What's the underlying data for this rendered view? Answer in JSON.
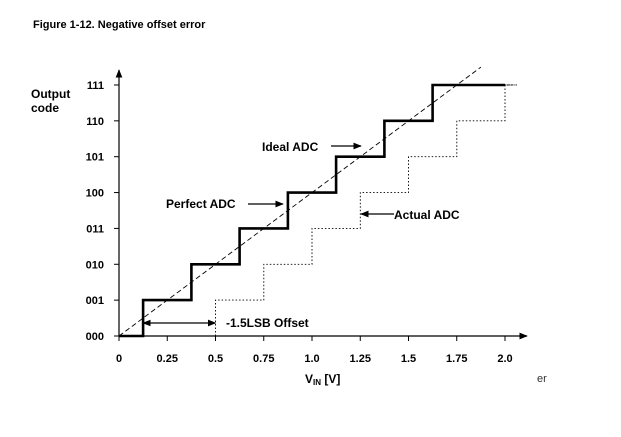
{
  "figure": {
    "title": "Figure 1-12. Negative offset error",
    "footer_text": "er"
  },
  "chart_data": {
    "type": "line",
    "title": "Figure 1-12. Negative offset error",
    "ylabel_line1": "Output",
    "ylabel_line2": "code",
    "xlabel_main": "V",
    "xlabel_sub": "IN",
    "xlabel_unit": " [V]",
    "xlim": [
      0,
      2.0
    ],
    "ylim_codes": [
      0,
      7
    ],
    "x_ticks": [
      0,
      0.25,
      0.5,
      0.75,
      1.0,
      1.25,
      1.5,
      1.75,
      2.0
    ],
    "x_tick_labels": [
      "0",
      "0.25",
      "0.5",
      "0.75",
      "1.0",
      "1.25",
      "1.5",
      "1.75",
      "2.0"
    ],
    "y_tick_labels": [
      "000",
      "001",
      "010",
      "011",
      "100",
      "101",
      "110",
      "111"
    ],
    "series": [
      {
        "name": "Perfect ADC",
        "style": "bold-solid",
        "x": [
          0,
          0.125,
          0.125,
          0.375,
          0.375,
          0.625,
          0.625,
          0.875,
          0.875,
          1.125,
          1.125,
          1.375,
          1.375,
          1.625,
          1.625,
          2.0
        ],
        "y": [
          0,
          0,
          1,
          1,
          2,
          2,
          3,
          3,
          4,
          4,
          5,
          5,
          6,
          6,
          7,
          7
        ]
      },
      {
        "name": "Ideal ADC",
        "style": "dashed",
        "x": [
          0,
          1.875
        ],
        "y": [
          0,
          7.5
        ]
      },
      {
        "name": "Actual ADC",
        "style": "dotted",
        "x": [
          0.5,
          0.5,
          0.75,
          0.75,
          1.0,
          1.0,
          1.25,
          1.25,
          1.5,
          1.5,
          1.75,
          1.75,
          2.0,
          2.0,
          2.05
        ],
        "y": [
          0,
          1,
          1,
          2,
          2,
          3,
          3,
          4,
          4,
          5,
          5,
          6,
          6,
          7,
          7
        ]
      }
    ],
    "annotations": {
      "ideal": "Ideal ADC",
      "perfect": "Perfect ADC",
      "actual": "Actual ADC",
      "offset": "-1.5LSB Offset"
    }
  }
}
